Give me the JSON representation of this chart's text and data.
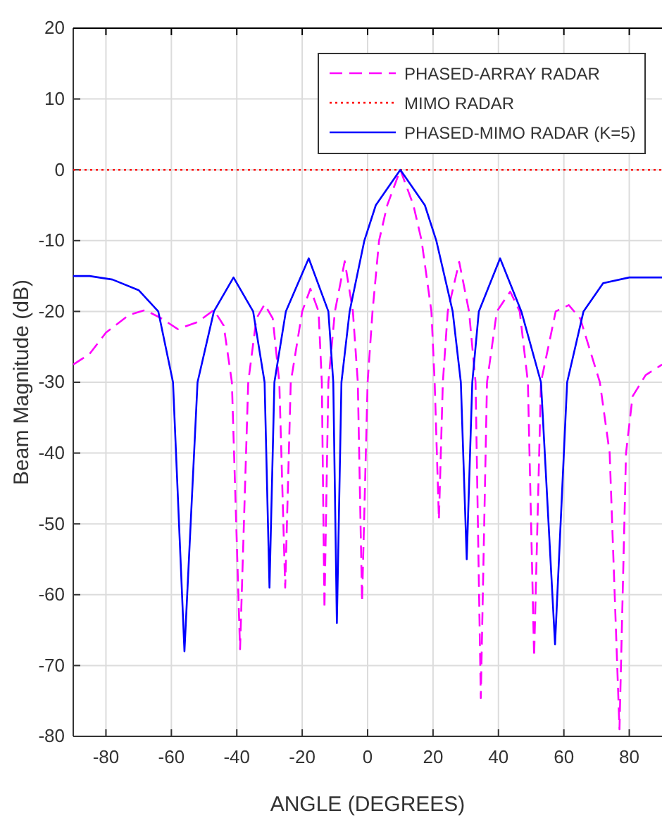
{
  "chart_data": {
    "type": "line",
    "xlabel": "ANGLE (DEGREES)",
    "ylabel": "Beam Magnitude (dB)",
    "xlim": [
      -90,
      90
    ],
    "ylim": [
      -80,
      20
    ],
    "xticks": [
      -80,
      -60,
      -40,
      -20,
      0,
      20,
      40,
      60,
      80
    ],
    "yticks": [
      -80,
      -70,
      -60,
      -50,
      -40,
      -30,
      -20,
      -10,
      0,
      10,
      20
    ],
    "grid": true,
    "legend": "top right",
    "marker": "none",
    "series": [
      {
        "name": "PHASED-ARRAY RADAR",
        "color": "#ff00ff",
        "line_style": "dashed",
        "x": [
          -90,
          -85,
          -80,
          -73,
          -68,
          -63,
          -58,
          -52,
          -47,
          -44,
          -41.5,
          -39,
          -36.5,
          -34,
          -31.5,
          -29,
          -27,
          -25.2,
          -23.5,
          -20,
          -17.5,
          -15,
          -14,
          -13.2,
          -12,
          -10,
          -7,
          -4.5,
          -3,
          -1.7,
          0,
          1.5,
          3.5,
          6,
          10,
          14,
          16.5,
          19.5,
          20.5,
          21.8,
          23,
          24.5,
          28,
          31,
          33,
          34.6,
          36.5,
          39.5,
          43.6,
          46.5,
          49,
          50.9,
          53,
          57.5,
          61.5,
          65,
          71,
          74,
          77,
          79,
          81,
          85,
          90
        ],
        "values": [
          -27.5,
          -26,
          -23,
          -20.5,
          -19.8,
          -21,
          -22.5,
          -21.5,
          -19.8,
          -22,
          -30,
          -67.7,
          -30,
          -21,
          -19,
          -21,
          -30,
          -59,
          -30,
          -20,
          -16.8,
          -20,
          -30,
          -62,
          -30,
          -20,
          -12.9,
          -20,
          -30,
          -61,
          -30,
          -20,
          -10,
          -5,
          0,
          -5,
          -10,
          -20,
          -30,
          -49.4,
          -30,
          -20,
          -13,
          -20,
          -30,
          -74.6,
          -30,
          -20,
          -17.2,
          -20,
          -30,
          -68.8,
          -30,
          -20,
          -19.1,
          -21,
          -30,
          -40,
          -79,
          -40,
          -32,
          -29,
          -27.5
        ]
      },
      {
        "name": "MIMO RADAR",
        "color": "#ff0000",
        "line_style": "dotted",
        "x": [
          -90,
          90
        ],
        "values": [
          0,
          0
        ]
      },
      {
        "name": "PHASED-MIMO RADAR (K=5)",
        "color": "#0000ff",
        "line_style": "solid",
        "x": [
          -90,
          -85,
          -78,
          -70,
          -64,
          -59.5,
          -56,
          -52,
          -47,
          -41,
          -35,
          -31.5,
          -30,
          -28.5,
          -25,
          -18,
          -12,
          -10.5,
          -9.4,
          -8,
          -5.5,
          -1,
          2.5,
          10,
          17.5,
          21,
          26,
          28.5,
          30.3,
          32,
          34,
          40.5,
          47,
          53,
          57.3,
          61,
          66,
          72,
          80,
          90
        ],
        "values": [
          -15,
          -15,
          -15.5,
          -17,
          -20,
          -30,
          -68,
          -30,
          -20,
          -15.2,
          -20,
          -30,
          -59,
          -30,
          -20,
          -12.5,
          -20,
          -30,
          -64,
          -30,
          -20,
          -10,
          -5,
          0,
          -5,
          -10,
          -20,
          -30,
          -55,
          -30,
          -20,
          -12.5,
          -20,
          -30,
          -67,
          -30,
          -20,
          -16,
          -15.2,
          -15.2
        ]
      }
    ]
  }
}
